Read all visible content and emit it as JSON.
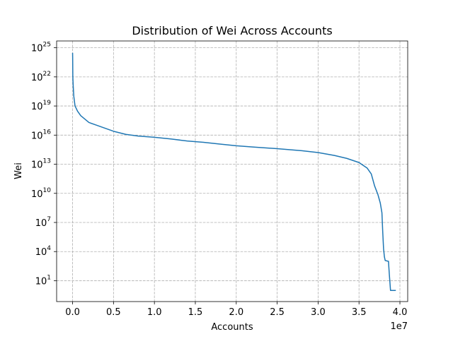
{
  "chart_data": {
    "type": "line",
    "title": "Distribution of Wei Across Accounts",
    "xlabel": "Accounts",
    "ylabel": "Wei",
    "x_offset_text": "1e7",
    "xscale": "linear",
    "yscale": "log",
    "xlim": [
      -1950000,
      40950000
    ],
    "ylim_exponent": [
      -1.15,
      25.7
    ],
    "grid": true,
    "x_ticks": [
      {
        "value": 0,
        "label": "0.0"
      },
      {
        "value": 5000000,
        "label": "0.5"
      },
      {
        "value": 10000000,
        "label": "1.0"
      },
      {
        "value": 15000000,
        "label": "1.5"
      },
      {
        "value": 20000000,
        "label": "2.0"
      },
      {
        "value": 25000000,
        "label": "2.5"
      },
      {
        "value": 30000000,
        "label": "3.0"
      },
      {
        "value": 35000000,
        "label": "3.5"
      },
      {
        "value": 40000000,
        "label": "4.0"
      }
    ],
    "y_ticks": [
      {
        "exponent": 1,
        "base": "10",
        "sup": "1"
      },
      {
        "exponent": 4,
        "base": "10",
        "sup": "4"
      },
      {
        "exponent": 7,
        "base": "10",
        "sup": "7"
      },
      {
        "exponent": 10,
        "base": "10",
        "sup": "10"
      },
      {
        "exponent": 13,
        "base": "10",
        "sup": "13"
      },
      {
        "exponent": 16,
        "base": "10",
        "sup": "16"
      },
      {
        "exponent": 19,
        "base": "10",
        "sup": "19"
      },
      {
        "exponent": 22,
        "base": "10",
        "sup": "22"
      },
      {
        "exponent": 25,
        "base": "10",
        "sup": "25"
      }
    ],
    "series": [
      {
        "color": "#1f77b4",
        "points": [
          {
            "x": 0,
            "y": 3e+24
          },
          {
            "x": 10000,
            "y": 1e+24
          },
          {
            "x": 30000,
            "y": 1e+22
          },
          {
            "x": 80000,
            "y": 1e+21
          },
          {
            "x": 150000,
            "y": 1e+20
          },
          {
            "x": 300000,
            "y": 1e+19
          },
          {
            "x": 600000,
            "y": 3e+18
          },
          {
            "x": 1000000,
            "y": 1e+18
          },
          {
            "x": 2000000,
            "y": 2e+17
          },
          {
            "x": 3000000,
            "y": 1e+17
          },
          {
            "x": 4000000,
            "y": 5e+16
          },
          {
            "x": 5000000,
            "y": 2.5e+16
          },
          {
            "x": 6500000,
            "y": 1.2e+16
          },
          {
            "x": 8000000,
            "y": 8000000000000000.0
          },
          {
            "x": 10000000,
            "y": 6000000000000000.0
          },
          {
            "x": 12000000,
            "y": 4000000000000000.0
          },
          {
            "x": 14000000,
            "y": 2500000000000000.0
          },
          {
            "x": 16000000,
            "y": 1800000000000000.0
          },
          {
            "x": 18000000,
            "y": 1200000000000000.0
          },
          {
            "x": 20000000,
            "y": 800000000000000.0
          },
          {
            "x": 22000000,
            "y": 600000000000000.0
          },
          {
            "x": 25000000,
            "y": 400000000000000.0
          },
          {
            "x": 28000000,
            "y": 250000000000000.0
          },
          {
            "x": 30000000,
            "y": 160000000000000.0
          },
          {
            "x": 32000000,
            "y": 80000000000000.0
          },
          {
            "x": 33500000,
            "y": 40000000000000.0
          },
          {
            "x": 35000000,
            "y": 15000000000000.0
          },
          {
            "x": 36000000,
            "y": 4000000000000.0
          },
          {
            "x": 36500000,
            "y": 1000000000000.0
          },
          {
            "x": 36900000,
            "y": 60000000000.0
          },
          {
            "x": 37300000,
            "y": 8000000000.0
          },
          {
            "x": 37600000,
            "y": 1000000000.0
          },
          {
            "x": 37800000,
            "y": 100000000.0
          },
          {
            "x": 37900000,
            "y": 1000000.0
          },
          {
            "x": 38000000,
            "y": 20000.0
          },
          {
            "x": 38100000,
            "y": 3000.0
          },
          {
            "x": 38200000,
            "y": 1200.0
          },
          {
            "x": 38600000,
            "y": 1000.0
          },
          {
            "x": 38700000,
            "y": 50.0
          },
          {
            "x": 38850000,
            "y": 1.0
          },
          {
            "x": 39500000,
            "y": 1.0
          }
        ]
      }
    ]
  }
}
